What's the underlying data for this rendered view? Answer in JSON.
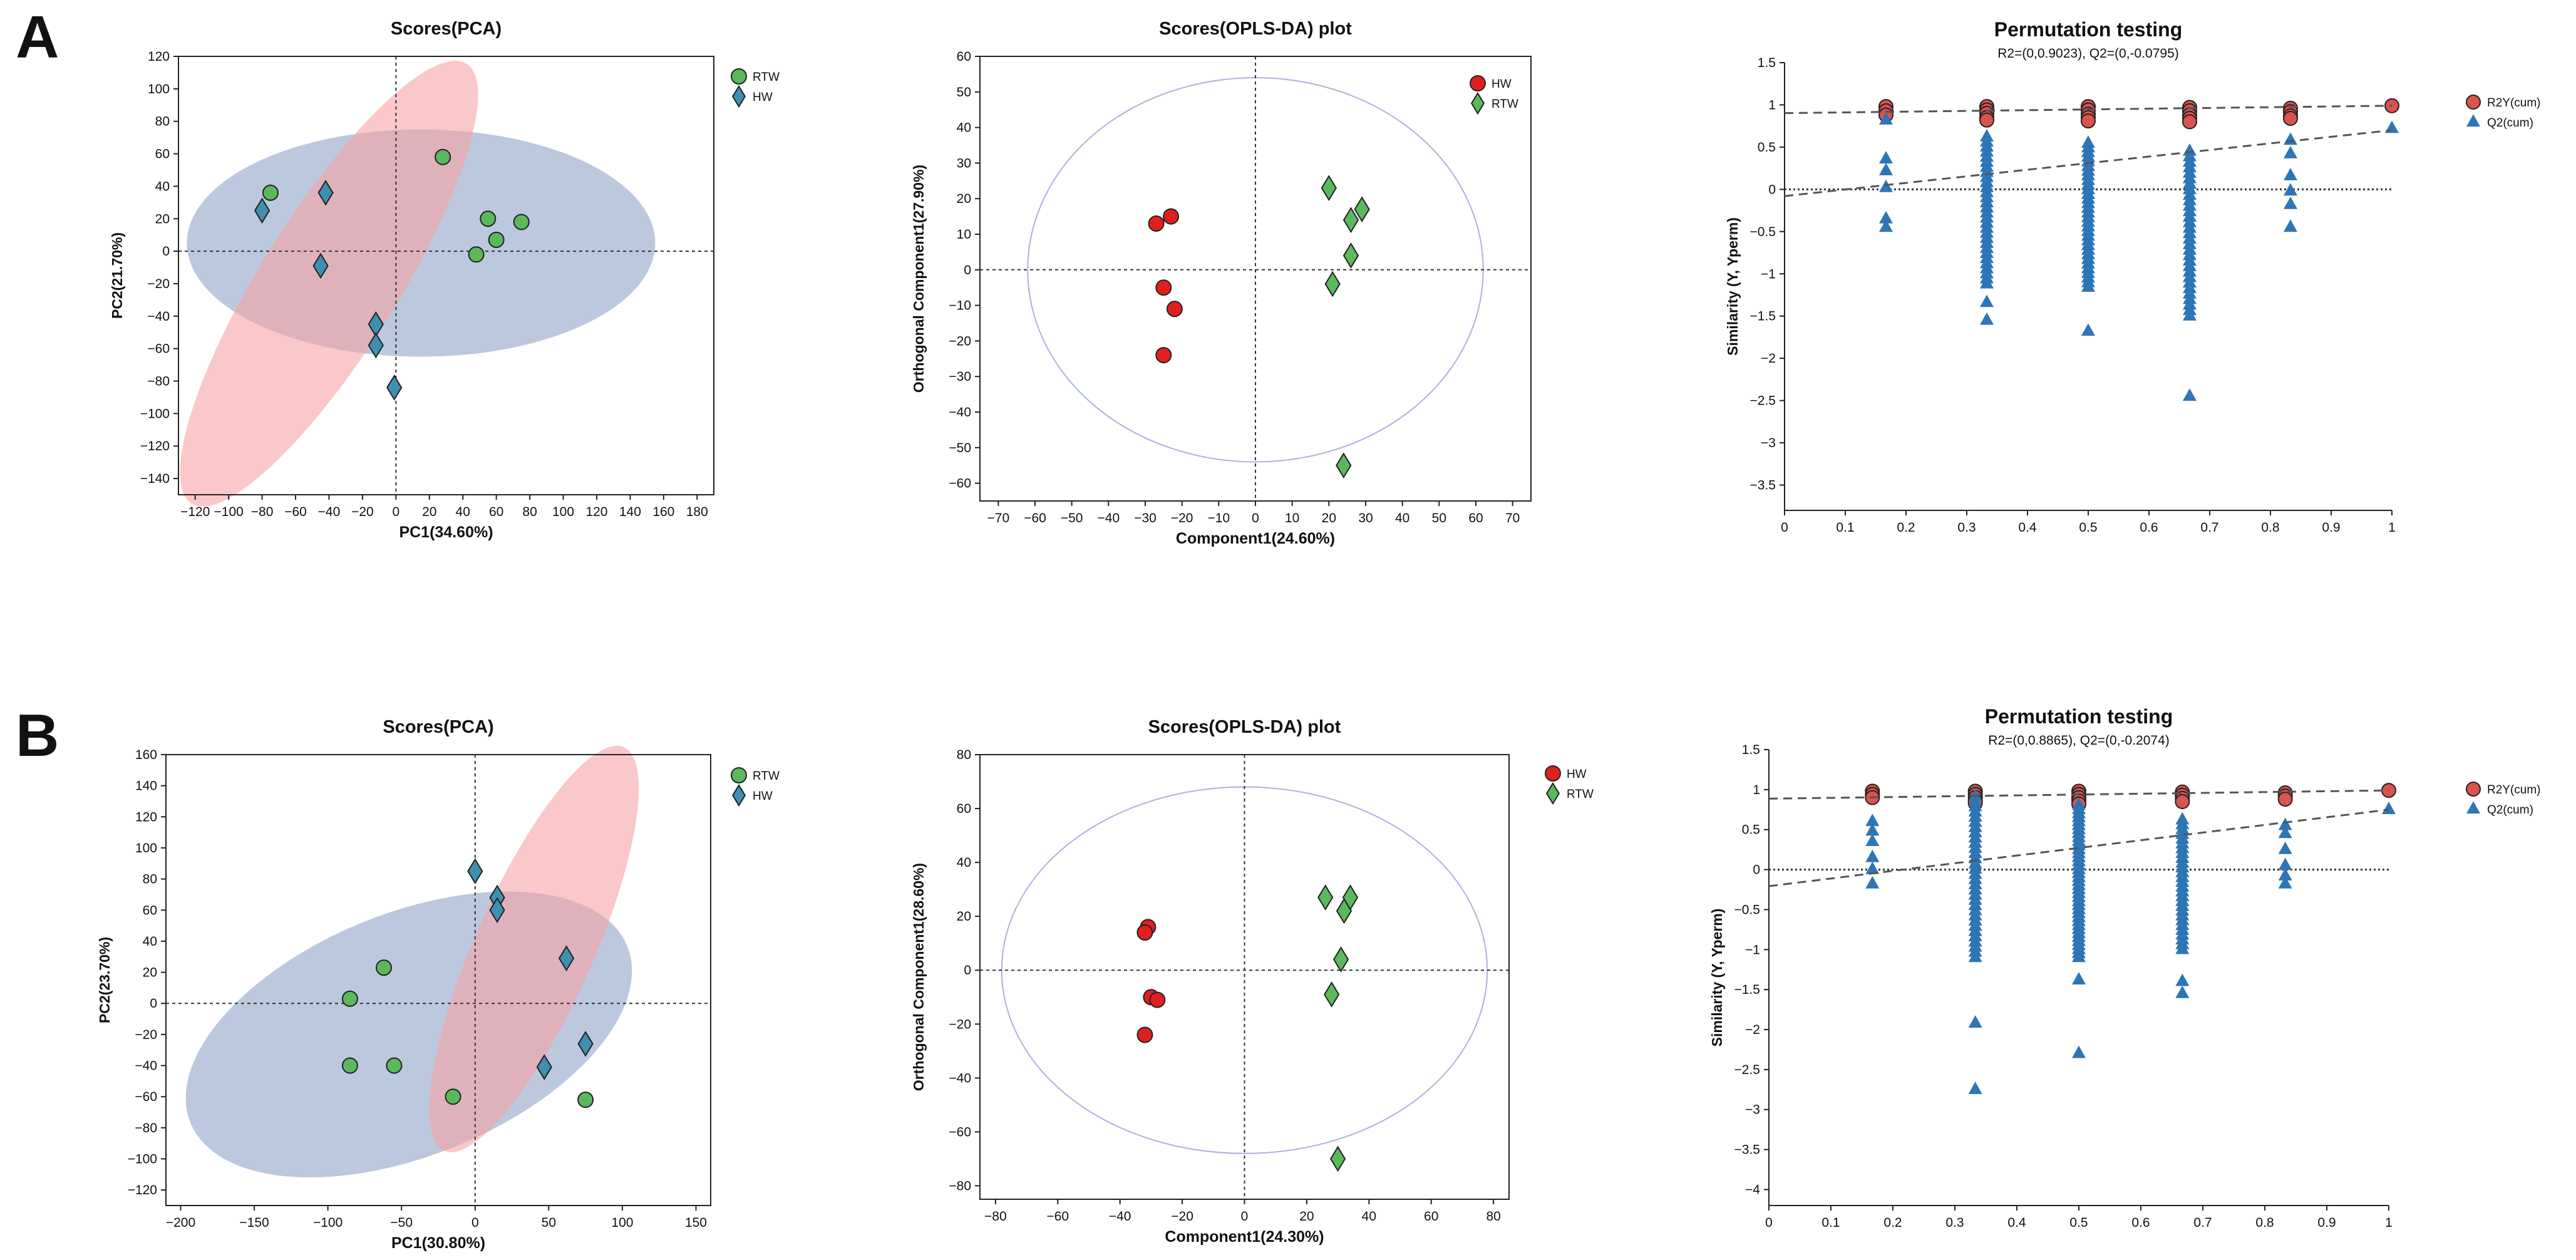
{
  "panels": [
    {
      "letter": "A"
    },
    {
      "letter": "B"
    }
  ],
  "chart_data": [
    {
      "id": "A-pca",
      "type": "scatter",
      "title": "Scores(PCA)",
      "subtitle": "",
      "xlabel": "PC1(34.60%)",
      "ylabel": "PC2(21.70%)",
      "xlim": [
        -130,
        190
      ],
      "ylim": [
        -150,
        120
      ],
      "xticks": [
        -120,
        -100,
        -80,
        -60,
        -40,
        -20,
        0,
        20,
        40,
        60,
        80,
        100,
        120,
        140,
        160,
        180
      ],
      "yticks": [
        -140,
        -120,
        -100,
        -80,
        -60,
        -40,
        -20,
        0,
        20,
        40,
        60,
        80,
        100,
        120
      ],
      "legend_position": "top-right",
      "ellipses": [
        {
          "group": "RTW",
          "center": [
            15,
            5
          ],
          "rx": 140,
          "ry": 70,
          "angle": 0,
          "fill": "#8fa3c8"
        },
        {
          "group": "HW",
          "center": [
            -40,
            -20
          ],
          "rx": 155,
          "ry": 42,
          "angle": -58,
          "fill": "#f7a4a4"
        }
      ],
      "series": [
        {
          "name": "RTW",
          "marker": "circle",
          "color": "#5cb85c",
          "points": [
            [
              -75,
              36
            ],
            [
              28,
              58
            ],
            [
              55,
              20
            ],
            [
              75,
              18
            ],
            [
              60,
              7
            ],
            [
              48,
              -2
            ]
          ]
        },
        {
          "name": "HW",
          "marker": "diamond",
          "color": "#3f8fb0",
          "points": [
            [
              -80,
              25
            ],
            [
              -42,
              36
            ],
            [
              -45,
              -9
            ],
            [
              -12,
              -45
            ],
            [
              -12,
              -58
            ],
            [
              -1,
              -84
            ]
          ]
        }
      ]
    },
    {
      "id": "A-oplsda",
      "type": "scatter",
      "title": "Scores(OPLS-DA) plot",
      "subtitle": "",
      "xlabel": "Component1(24.60%)",
      "ylabel": "Orthogonal Component1(27.90%)",
      "xlim": [
        -75,
        75
      ],
      "ylim": [
        -65,
        60
      ],
      "xticks": [
        -70,
        -60,
        -50,
        -40,
        -30,
        -20,
        -10,
        0,
        10,
        20,
        30,
        40,
        50,
        60,
        70
      ],
      "yticks": [
        -60,
        -50,
        -40,
        -30,
        -20,
        -10,
        0,
        10,
        20,
        30,
        40,
        50,
        60
      ],
      "legend_position": "top-right",
      "ellipses": [
        {
          "group": "T2",
          "center": [
            0,
            0
          ],
          "rx": 62,
          "ry": 54,
          "angle": 0,
          "fill": "none",
          "stroke": "#a8b4dc"
        }
      ],
      "series": [
        {
          "name": "HW",
          "marker": "circle",
          "color": "#e02020",
          "points": [
            [
              -27,
              13
            ],
            [
              -23,
              15
            ],
            [
              -25,
              -5
            ],
            [
              -22,
              -11
            ],
            [
              -25,
              -24
            ]
          ]
        },
        {
          "name": "RTW",
          "marker": "diamond",
          "color": "#5cb85c",
          "points": [
            [
              20,
              23
            ],
            [
              26,
              14
            ],
            [
              29,
              17
            ],
            [
              26,
              4
            ],
            [
              21,
              -4
            ],
            [
              24,
              -55
            ]
          ]
        }
      ]
    },
    {
      "id": "A-permutation",
      "type": "scatter",
      "title": "Permutation testing",
      "subtitle": "R2=(0,0.9023), Q2=(0,-0.0795)",
      "xlabel": "",
      "ylabel": "Similarity (Y, Yperm)",
      "xlim": [
        0,
        1
      ],
      "ylim": [
        -3.8,
        1.5
      ],
      "xticks": [
        0,
        0.1,
        0.2,
        0.3,
        0.4,
        0.5,
        0.6,
        0.7,
        0.8,
        0.9,
        1
      ],
      "yticks": [
        1.5,
        1,
        0.5,
        0,
        -0.5,
        -1,
        -1.5,
        -2,
        -2.5,
        -3,
        -3.5
      ],
      "legend_position": "right",
      "r2_line": [
        [
          0,
          0.9023
        ],
        [
          1,
          0.99
        ]
      ],
      "q2_line": [
        [
          0,
          -0.0795
        ],
        [
          1,
          0.7
        ]
      ],
      "series": [
        {
          "name": "R2Y(cum)",
          "marker": "circle",
          "color": "#d9534f",
          "points": [
            [
              0.167,
              0.98
            ],
            [
              0.167,
              0.93
            ],
            [
              0.167,
              0.88
            ],
            [
              0.333,
              0.98
            ],
            [
              0.333,
              0.94
            ],
            [
              0.333,
              0.9
            ],
            [
              0.333,
              0.85
            ],
            [
              0.333,
              0.82
            ],
            [
              0.5,
              0.98
            ],
            [
              0.5,
              0.94
            ],
            [
              0.5,
              0.89
            ],
            [
              0.5,
              0.85
            ],
            [
              0.5,
              0.81
            ],
            [
              0.667,
              0.97
            ],
            [
              0.667,
              0.93
            ],
            [
              0.667,
              0.88
            ],
            [
              0.667,
              0.84
            ],
            [
              0.667,
              0.8
            ],
            [
              0.833,
              0.96
            ],
            [
              0.833,
              0.92
            ],
            [
              0.833,
              0.87
            ],
            [
              0.833,
              0.84
            ],
            [
              1,
              0.99
            ]
          ]
        },
        {
          "name": "Q2(cum)",
          "marker": "triangle",
          "color": "#2e75b6",
          "points": [
            [
              0.167,
              0.82
            ],
            [
              0.167,
              0.36
            ],
            [
              0.167,
              0.22
            ],
            [
              0.167,
              0.02
            ],
            [
              0.167,
              -0.35
            ],
            [
              0.167,
              -0.45
            ],
            [
              0.333,
              -1.34
            ],
            [
              0.333,
              -1.55
            ],
            [
              0.5,
              -1.68
            ],
            [
              0.667,
              -2.45
            ],
            [
              0.833,
              0.58
            ],
            [
              0.833,
              0.42
            ],
            [
              0.833,
              0.16
            ],
            [
              0.833,
              -0.02
            ],
            [
              0.833,
              -0.18
            ],
            [
              0.833,
              -0.45
            ],
            [
              1,
              0.72
            ]
          ]
        },
        {
          "name": "Q2(cum)",
          "marker": "triangle",
          "color": "#2e75b6",
          "stacks": [
            {
              "x": 0.333,
              "from": -1.12,
              "to": 0.62,
              "step": 0.06
            },
            {
              "x": 0.5,
              "from": -1.16,
              "to": 0.55,
              "step": 0.055
            },
            {
              "x": 0.667,
              "from": -1.5,
              "to": 0.5,
              "step": 0.065
            }
          ]
        }
      ]
    },
    {
      "id": "B-pca",
      "type": "scatter",
      "title": "Scores(PCA)",
      "subtitle": "",
      "xlabel": "PC1(30.80%)",
      "ylabel": "PC2(23.70%)",
      "xlim": [
        -210,
        160
      ],
      "ylim": [
        -130,
        160
      ],
      "xticks": [
        -200,
        -150,
        -100,
        -50,
        0,
        50,
        100,
        150
      ],
      "yticks": [
        -120,
        -100,
        -80,
        -60,
        -40,
        -20,
        0,
        20,
        40,
        60,
        80,
        100,
        120,
        140,
        160
      ],
      "legend_position": "top-right",
      "ellipses": [
        {
          "group": "RTW",
          "center": [
            -45,
            -20
          ],
          "rx": 160,
          "ry": 78,
          "angle": -22,
          "fill": "#8fa3c8"
        },
        {
          "group": "HW",
          "center": [
            40,
            35
          ],
          "rx": 150,
          "ry": 38,
          "angle": -66,
          "fill": "#f7a4a4"
        }
      ],
      "series": [
        {
          "name": "RTW",
          "marker": "circle",
          "color": "#5cb85c",
          "points": [
            [
              -62,
              23
            ],
            [
              -85,
              3
            ],
            [
              -85,
              -40
            ],
            [
              -55,
              -40
            ],
            [
              -15,
              -60
            ],
            [
              75,
              -62
            ]
          ]
        },
        {
          "name": "HW",
          "marker": "diamond",
          "color": "#3f8fb0",
          "points": [
            [
              0,
              85
            ],
            [
              15,
              68
            ],
            [
              15,
              60
            ],
            [
              62,
              29
            ],
            [
              75,
              -26
            ],
            [
              47,
              -41
            ]
          ]
        }
      ]
    },
    {
      "id": "B-oplsda",
      "type": "scatter",
      "title": "Scores(OPLS-DA) plot",
      "subtitle": "",
      "xlabel": "Component1(24.30%)",
      "ylabel": "Orthogonal Component1(28.60%)",
      "xlim": [
        -85,
        85
      ],
      "ylim": [
        -85,
        80
      ],
      "xticks": [
        -80,
        -60,
        -40,
        -20,
        0,
        20,
        40,
        60,
        80
      ],
      "yticks": [
        -80,
        -60,
        -40,
        -20,
        0,
        20,
        40,
        60,
        80
      ],
      "legend_position": "top-right",
      "ellipses": [
        {
          "group": "T2",
          "center": [
            0,
            0
          ],
          "rx": 78,
          "ry": 68,
          "angle": 0,
          "fill": "none",
          "stroke": "#a8b4dc"
        }
      ],
      "series": [
        {
          "name": "HW",
          "marker": "circle",
          "color": "#e02020",
          "points": [
            [
              -31,
              16
            ],
            [
              -32,
              14
            ],
            [
              -30,
              -10
            ],
            [
              -28,
              -11
            ],
            [
              -32,
              -24
            ]
          ]
        },
        {
          "name": "RTW",
          "marker": "diamond",
          "color": "#5cb85c",
          "points": [
            [
              26,
              27
            ],
            [
              32,
              22
            ],
            [
              34,
              27
            ],
            [
              31,
              4
            ],
            [
              28,
              -9
            ],
            [
              30,
              -70
            ]
          ]
        }
      ]
    },
    {
      "id": "B-permutation",
      "type": "scatter",
      "title": "Permutation testing",
      "subtitle": "R2=(0,0.8865), Q2=(0,-0.2074)",
      "xlabel": "",
      "ylabel": "Similarity (Y, Yperm)",
      "xlim": [
        0,
        1
      ],
      "ylim": [
        -4.2,
        1.5
      ],
      "xticks": [
        0,
        0.1,
        0.2,
        0.3,
        0.4,
        0.5,
        0.6,
        0.7,
        0.8,
        0.9,
        1
      ],
      "yticks": [
        1.5,
        1,
        0.5,
        0,
        -0.5,
        -1,
        -1.5,
        -2,
        -2.5,
        -3,
        -3.5,
        -4
      ],
      "legend_position": "right",
      "r2_line": [
        [
          0,
          0.8865
        ],
        [
          1,
          0.99
        ]
      ],
      "q2_line": [
        [
          0,
          -0.2074
        ],
        [
          1,
          0.75
        ]
      ],
      "series": [
        {
          "name": "R2Y(cum)",
          "marker": "circle",
          "color": "#d9534f",
          "points": [
            [
              0.167,
              0.98
            ],
            [
              0.167,
              0.94
            ],
            [
              0.167,
              0.9
            ],
            [
              0.333,
              0.98
            ],
            [
              0.333,
              0.94
            ],
            [
              0.333,
              0.9
            ],
            [
              0.333,
              0.86
            ],
            [
              0.333,
              0.83
            ],
            [
              0.5,
              0.98
            ],
            [
              0.5,
              0.94
            ],
            [
              0.5,
              0.9
            ],
            [
              0.5,
              0.86
            ],
            [
              0.5,
              0.82
            ],
            [
              0.667,
              0.97
            ],
            [
              0.667,
              0.93
            ],
            [
              0.667,
              0.89
            ],
            [
              0.667,
              0.85
            ],
            [
              0.833,
              0.96
            ],
            [
              0.833,
              0.92
            ],
            [
              0.833,
              0.88
            ],
            [
              1,
              0.99
            ]
          ]
        },
        {
          "name": "Q2(cum)",
          "marker": "triangle",
          "color": "#2e75b6",
          "points": [
            [
              0.167,
              0.6
            ],
            [
              0.167,
              0.48
            ],
            [
              0.167,
              0.35
            ],
            [
              0.167,
              0.15
            ],
            [
              0.167,
              0.0
            ],
            [
              0.167,
              -0.18
            ],
            [
              0.333,
              -1.92
            ],
            [
              0.333,
              -2.75
            ],
            [
              0.5,
              -2.3
            ],
            [
              0.5,
              -1.38
            ],
            [
              0.667,
              -1.4
            ],
            [
              0.667,
              -1.55
            ],
            [
              0.833,
              0.55
            ],
            [
              0.833,
              0.45
            ],
            [
              0.833,
              0.25
            ],
            [
              0.833,
              0.05
            ],
            [
              0.833,
              -0.08
            ],
            [
              0.833,
              -0.18
            ],
            [
              1,
              0.75
            ]
          ]
        },
        {
          "name": "Q2(cum)",
          "marker": "triangle",
          "color": "#2e75b6",
          "stacks": [
            {
              "x": 0.333,
              "from": -1.1,
              "to": 0.95,
              "step": 0.065
            },
            {
              "x": 0.5,
              "from": -1.1,
              "to": 0.8,
              "step": 0.05
            },
            {
              "x": 0.667,
              "from": -1.0,
              "to": 0.65,
              "step": 0.06
            }
          ]
        }
      ]
    }
  ]
}
